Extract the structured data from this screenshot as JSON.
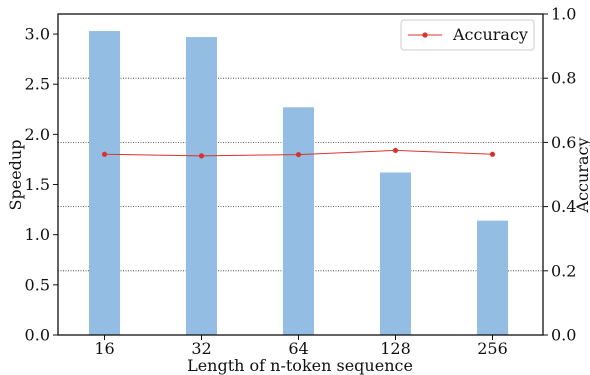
{
  "chart_data": {
    "type": "bar",
    "categories": [
      "16",
      "32",
      "64",
      "128",
      "256"
    ],
    "series": [
      {
        "name": "",
        "axis": "left",
        "kind": "bar",
        "values": [
          3.03,
          2.97,
          2.27,
          1.62,
          1.14
        ],
        "color": "#93bde3"
      },
      {
        "name": "Accuracy",
        "axis": "right",
        "kind": "line",
        "values": [
          0.563,
          0.558,
          0.562,
          0.575,
          0.563
        ],
        "color": "#d9332f"
      }
    ],
    "xlabel": "Length of n-token sequence",
    "ylabel": "Speedup",
    "y2label": "Accuracy",
    "ylim": [
      0,
      3.2
    ],
    "y2lim": [
      0,
      1.0
    ],
    "yticks": [
      "0.0",
      "0.5",
      "1.0",
      "1.5",
      "2.0",
      "2.5",
      "3.0"
    ],
    "y2ticks": [
      "0.0",
      "0.2",
      "0.4",
      "0.6",
      "0.8",
      "1.0"
    ],
    "grid": "horizontal dotted at right-axis ticks",
    "legend_position": "top-right"
  }
}
